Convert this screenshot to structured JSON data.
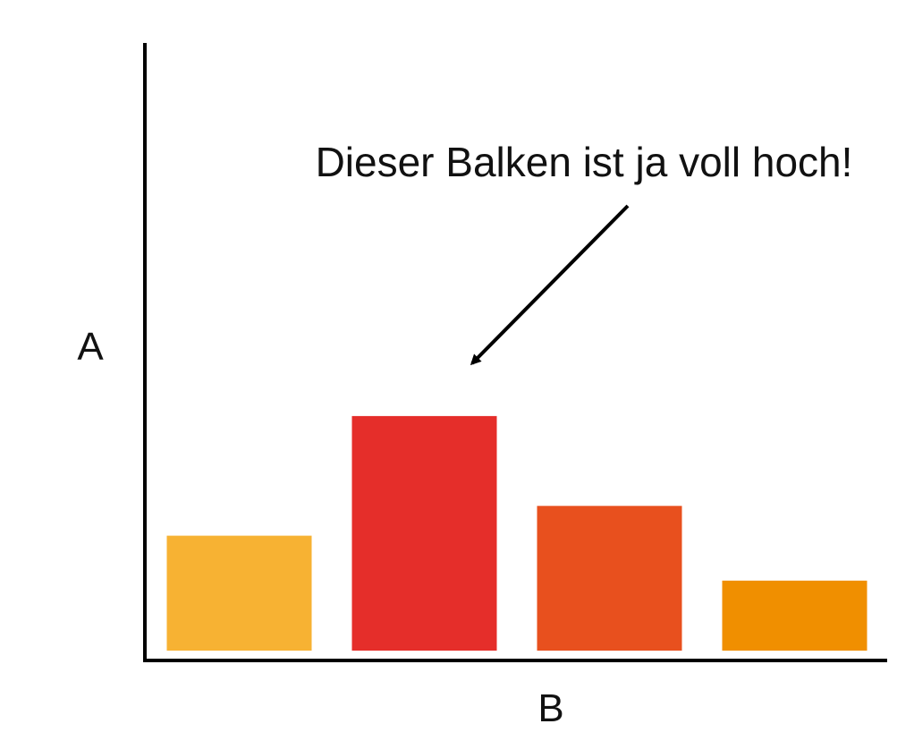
{
  "chart_data": {
    "type": "bar",
    "title": "",
    "xlabel": "B",
    "ylabel": "A",
    "categories": [
      "",
      "",
      "",
      ""
    ],
    "values": [
      19.7,
      40.2,
      24.8,
      12.0
    ],
    "ylim": [
      0,
      100
    ],
    "grid": false,
    "legend": "none",
    "colors": [
      "#F7B233",
      "#E52E2A",
      "#E8501E",
      "#F08F00"
    ],
    "annotations": [
      {
        "text": "Dieser Balken ist ja voll hoch!",
        "target_index": 1
      }
    ]
  },
  "colors": {
    "axis": "#000000",
    "text": "#111111",
    "background": "#ffffff"
  }
}
